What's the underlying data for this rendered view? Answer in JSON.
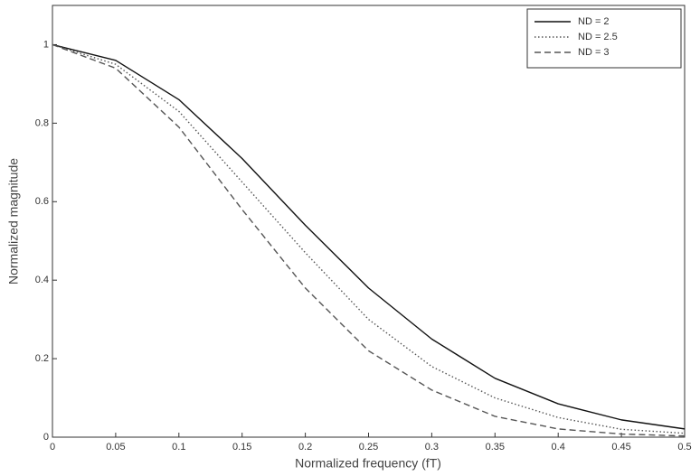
{
  "chart_data": {
    "type": "line",
    "x_label": "Normalized frequency (fT)",
    "y_label": "Normalized magnitude",
    "x": [
      0,
      0.05,
      0.1,
      0.15,
      0.2,
      0.25,
      0.3,
      0.35,
      0.4,
      0.45,
      0.5
    ],
    "series": [
      {
        "name": "ND = 2",
        "color": "#111111",
        "style": "solid",
        "values": [
          1,
          0.96,
          0.86,
          0.71,
          0.54,
          0.38,
          0.25,
          0.15,
          0.085,
          0.044,
          0.021
        ]
      },
      {
        "name": "ND = 2.5",
        "color": "#555555",
        "style": "dotted",
        "values": [
          1,
          0.95,
          0.83,
          0.65,
          0.47,
          0.3,
          0.18,
          0.1,
          0.05,
          0.02,
          0.01
        ]
      },
      {
        "name": "ND = 3",
        "color": "#555555",
        "style": "dashed",
        "values": [
          1,
          0.94,
          0.79,
          0.58,
          0.38,
          0.22,
          0.12,
          0.053,
          0.021,
          0.008,
          0.003
        ]
      }
    ],
    "xlim": [
      0,
      0.5
    ],
    "xticks": [
      0,
      0.05,
      0.1,
      0.15,
      0.2,
      0.25,
      0.3,
      0.35,
      0.4,
      0.45,
      0.5
    ],
    "ylim": [
      0,
      1.1
    ],
    "yticks": [
      0,
      0.2,
      0.4,
      0.6,
      0.8,
      1
    ],
    "grid": false,
    "legend": "top-right"
  }
}
